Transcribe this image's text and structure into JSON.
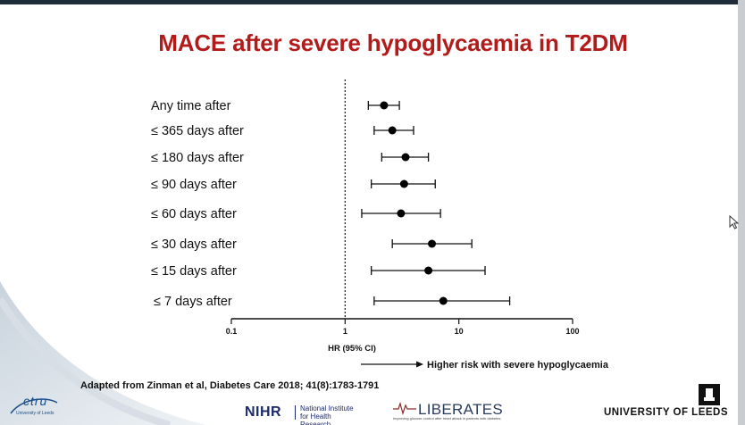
{
  "slide": {
    "title": "MACE after severe hypoglycaemia in T2DM",
    "arrow_note": "Higher risk with severe hypoglycaemia",
    "citation": "Adapted from Zinman et al, Diabetes Care 2018; 41(8):1783-1791"
  },
  "logos": {
    "ctru": "ctru",
    "ctru_sub": "University of Leeds",
    "nihr": "NIHR",
    "nihr_sub": "National Institute for Health Research",
    "liberates": "LIBERATES",
    "liberates_sub": "Improving glucose control after heart attack in patients with diabetes",
    "leeds": "UNIVERSITY OF LEEDS"
  },
  "colors": {
    "title": "#b31b1b",
    "markers": "#000000",
    "nihr": "#1b2a6b",
    "ctru": "#1b4f8a"
  },
  "chart_data": {
    "type": "forest",
    "xlabel": "HR (95% CI)",
    "xscale": "log",
    "xlim": [
      0.1,
      100
    ],
    "xticks": [
      0.1,
      1,
      10,
      100
    ],
    "xtick_labels": [
      "0.1",
      "1",
      "10",
      "100"
    ],
    "reference_line": 1,
    "rows": [
      {
        "label": "Any time after",
        "hr": 2.2,
        "lo": 1.6,
        "hi": 3.0
      },
      {
        "label": "≤ 365 days after",
        "hr": 2.6,
        "lo": 1.8,
        "hi": 4.0
      },
      {
        "label": "≤ 180 days after",
        "hr": 3.4,
        "lo": 2.1,
        "hi": 5.4
      },
      {
        "label": "≤ 90 days after",
        "hr": 3.3,
        "lo": 1.7,
        "hi": 6.2
      },
      {
        "label": "≤ 60 days after",
        "hr": 3.1,
        "lo": 1.4,
        "hi": 6.9
      },
      {
        "label": "≤ 30 days after",
        "hr": 5.8,
        "lo": 2.6,
        "hi": 13.0
      },
      {
        "label": "≤ 15 days after",
        "hr": 5.4,
        "lo": 1.7,
        "hi": 17.0
      },
      {
        "label": "≤ 7 days after",
        "hr": 7.3,
        "lo": 1.8,
        "hi": 28.0
      }
    ]
  }
}
